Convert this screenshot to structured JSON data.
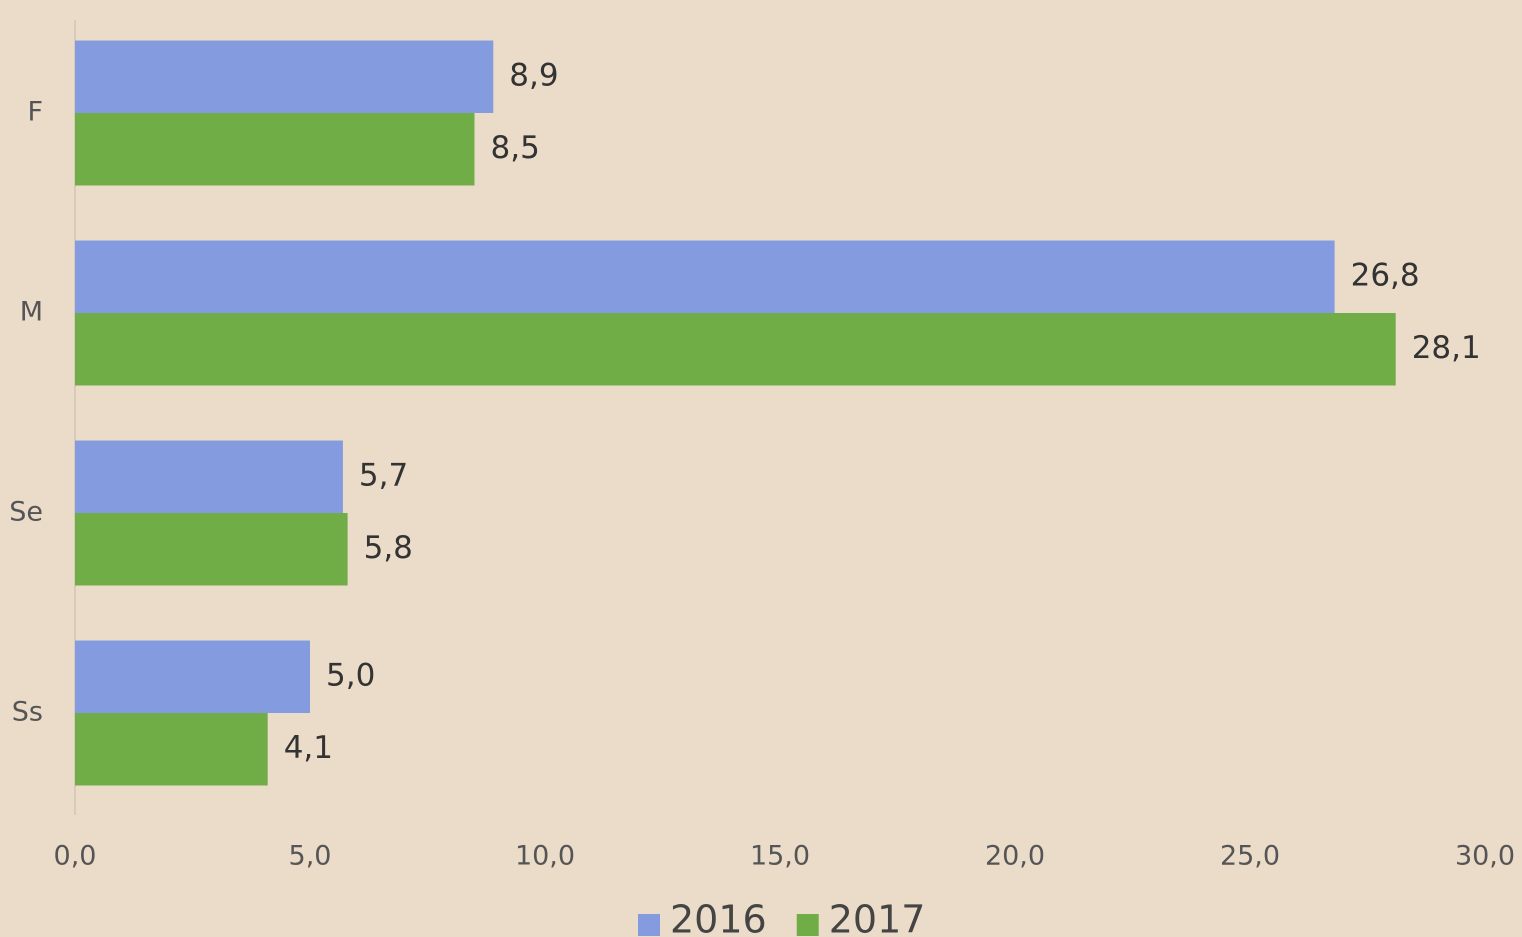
{
  "chart_data": {
    "type": "bar",
    "orientation": "horizontal",
    "categories": [
      "F",
      "M",
      "Se",
      "Ss"
    ],
    "series": [
      {
        "name": "2016",
        "color": "#849bdf",
        "values": [
          8.9,
          26.8,
          5.7,
          5.0
        ],
        "value_labels": [
          "8,9",
          "26,8",
          "5,7",
          "5,0"
        ]
      },
      {
        "name": "2017",
        "color": "#70ad47",
        "values": [
          8.5,
          28.1,
          5.8,
          4.1
        ],
        "value_labels": [
          "8,5",
          "28,1",
          "5,8",
          "4,1"
        ]
      }
    ],
    "xlim": [
      0,
      30
    ],
    "xticks": [
      {
        "value": 0,
        "label": "0,0"
      },
      {
        "value": 5,
        "label": "5,0"
      },
      {
        "value": 10,
        "label": "10,0"
      },
      {
        "value": 15,
        "label": "15,0"
      },
      {
        "value": 20,
        "label": "20,0"
      },
      {
        "value": 25,
        "label": "25,0"
      },
      {
        "value": 30,
        "label": "30,0"
      }
    ],
    "grid": false,
    "legend": "bottom"
  }
}
